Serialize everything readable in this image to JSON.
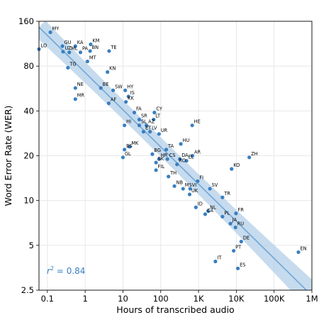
{
  "chart_data": {
    "type": "scatter",
    "xlabel": "Hours of transcribed audio",
    "ylabel": "Word Error Rate (WER)",
    "xscale": "log",
    "yscale": "log",
    "xlim": [
      0.06,
      1000000
    ],
    "ylim": [
      2.5,
      160
    ],
    "xticks": [
      {
        "value": 0.1,
        "label": "0.1"
      },
      {
        "value": 1,
        "label": "1"
      },
      {
        "value": 10,
        "label": "10"
      },
      {
        "value": 100,
        "label": "100"
      },
      {
        "value": 1000,
        "label": "1K"
      },
      {
        "value": 10000,
        "label": "10K"
      },
      {
        "value": 100000,
        "label": "100K"
      },
      {
        "value": 1000000,
        "label": "1M"
      }
    ],
    "yticks": [
      {
        "value": 2.5,
        "label": "2.5"
      },
      {
        "value": 5,
        "label": "5"
      },
      {
        "value": 10,
        "label": "10"
      },
      {
        "value": 20,
        "label": "20"
      },
      {
        "value": 40,
        "label": "40"
      },
      {
        "value": 80,
        "label": "80"
      },
      {
        "value": 160,
        "label": "160"
      }
    ],
    "grid": true,
    "annotation": {
      "prefix": "r",
      "superscript": "2",
      "suffix": " = 0.84"
    },
    "fit_line": {
      "start": [
        0.06,
        146
      ],
      "end": [
        1000000,
        2.3
      ]
    },
    "colors": {
      "point": "#3a7fc1",
      "fit": "#6fa6d6",
      "band": "#b3cfe8"
    },
    "points": [
      {
        "label": "MY",
        "x": 0.12,
        "y": 135
      },
      {
        "label": "LO",
        "x": 0.06,
        "y": 104
      },
      {
        "label": "GU",
        "x": 0.25,
        "y": 109
      },
      {
        "label": "UZ",
        "x": 0.26,
        "y": 100
      },
      {
        "label": "ML",
        "x": 0.38,
        "y": 99
      },
      {
        "label": "KA",
        "x": 0.55,
        "y": 109
      },
      {
        "label": "PA",
        "x": 0.75,
        "y": 99
      },
      {
        "label": "KM",
        "x": 1.4,
        "y": 112
      },
      {
        "label": "BN",
        "x": 1.35,
        "y": 101
      },
      {
        "label": "TE",
        "x": 4.3,
        "y": 101
      },
      {
        "label": "MT",
        "x": 1.15,
        "y": 86
      },
      {
        "label": "TG",
        "x": 0.35,
        "y": 78
      },
      {
        "label": "KN",
        "x": 3.9,
        "y": 73
      },
      {
        "label": "NE",
        "x": 0.55,
        "y": 57
      },
      {
        "label": "MR",
        "x": 0.55,
        "y": 48
      },
      {
        "label": "BE",
        "x": 2.6,
        "y": 57
      },
      {
        "label": "SW",
        "x": 5.5,
        "y": 55
      },
      {
        "label": "HY",
        "x": 11.5,
        "y": 55
      },
      {
        "label": "IS",
        "x": 14,
        "y": 50
      },
      {
        "label": "KK",
        "x": 12,
        "y": 46
      },
      {
        "label": "AF",
        "x": 4.2,
        "y": 45
      },
      {
        "label": "FA",
        "x": 20,
        "y": 39
      },
      {
        "label": "CY",
        "x": 68,
        "y": 39
      },
      {
        "label": "SR",
        "x": 27,
        "y": 35
      },
      {
        "label": "LT",
        "x": 65,
        "y": 35
      },
      {
        "label": "HI",
        "x": 11,
        "y": 32
      },
      {
        "label": "SL",
        "x": 27,
        "y": 32
      },
      {
        "label": "AZ",
        "x": 42,
        "y": 32
      },
      {
        "label": "ET",
        "x": 35,
        "y": 29
      },
      {
        "label": "LV",
        "x": 52,
        "y": 29
      },
      {
        "label": "UR",
        "x": 90,
        "y": 28
      },
      {
        "label": "HE",
        "x": 680,
        "y": 32
      },
      {
        "label": "HU",
        "x": 340,
        "y": 24
      },
      {
        "label": "TA",
        "x": 140,
        "y": 22
      },
      {
        "label": "MK",
        "x": 15,
        "y": 23
      },
      {
        "label": "BS",
        "x": 11,
        "y": 22
      },
      {
        "label": "BG",
        "x": 60,
        "y": 20.5
      },
      {
        "label": "CS",
        "x": 150,
        "y": 19
      },
      {
        "label": "AR",
        "x": 690,
        "y": 20
      },
      {
        "label": "DA",
        "x": 320,
        "y": 19
      },
      {
        "label": "EL",
        "x": 480,
        "y": 18.5
      },
      {
        "label": "HR",
        "x": 90,
        "y": 19
      },
      {
        "label": "RO",
        "x": 270,
        "y": 17.5
      },
      {
        "label": "GL",
        "x": 10,
        "y": 19.5
      },
      {
        "label": "SK",
        "x": 75,
        "y": 18
      },
      {
        "label": "ZH",
        "x": 22000,
        "y": 19.5
      },
      {
        "label": "FIL",
        "x": 75,
        "y": 16
      },
      {
        "label": "KO",
        "x": 7500,
        "y": 16.3
      },
      {
        "label": "TH",
        "x": 160,
        "y": 14.5
      },
      {
        "label": "FI",
        "x": 950,
        "y": 13.5
      },
      {
        "label": "NB",
        "x": 230,
        "y": 12.5
      },
      {
        "label": "SV",
        "x": 2000,
        "y": 12
      },
      {
        "label": "MS",
        "x": 390,
        "y": 12
      },
      {
        "label": "VI",
        "x": 600,
        "y": 12
      },
      {
        "label": "UK",
        "x": 580,
        "y": 11
      },
      {
        "label": "TR",
        "x": 4300,
        "y": 10.5
      },
      {
        "label": "ID",
        "x": 850,
        "y": 9
      },
      {
        "label": "NL",
        "x": 1800,
        "y": 8.5
      },
      {
        "label": "CA",
        "x": 1500,
        "y": 8.1
      },
      {
        "label": "FR",
        "x": 9800,
        "y": 8.2
      },
      {
        "label": "PL",
        "x": 4300,
        "y": 7.8
      },
      {
        "label": "JA",
        "x": 7000,
        "y": 7
      },
      {
        "label": "RU",
        "x": 9500,
        "y": 6.6
      },
      {
        "label": "DE",
        "x": 13500,
        "y": 5.3
      },
      {
        "label": "PT",
        "x": 8500,
        "y": 4.6
      },
      {
        "label": "EN",
        "x": 440000,
        "y": 4.5
      },
      {
        "label": "IT",
        "x": 2800,
        "y": 3.9
      },
      {
        "label": "ES",
        "x": 11000,
        "y": 3.5
      }
    ]
  }
}
